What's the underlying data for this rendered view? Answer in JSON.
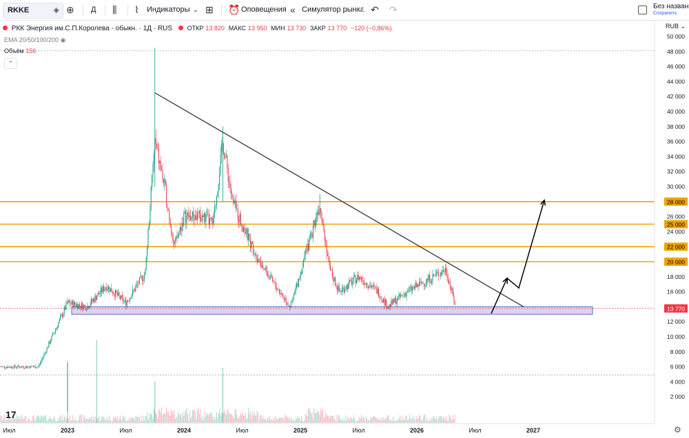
{
  "toolbar": {
    "symbol": "RKKE",
    "interval": "Д",
    "indicators_label": "Индикаторы",
    "alerts_label": "Оповещения",
    "replay_label": "Симулятор рынка",
    "layout_name": "Без названия",
    "save_label": "Сохранить",
    "icons": [
      "add-symbol-icon",
      "bar-style-icon",
      "indicators-icon",
      "chevron-down-icon",
      "templates-icon",
      "alert-icon",
      "replay-icon",
      "undo-icon",
      "redo-icon"
    ]
  },
  "legend": {
    "instrument": "РКК Энергия им.С.П.Королева - обыкн. · 1Д · RUS",
    "open_label": "ОТКР",
    "open": "13 820",
    "high_label": "МАКС",
    "high": "13 950",
    "low_label": "МИН",
    "low": "13 730",
    "close_label": "ЗАКР",
    "close": "13 770",
    "change": "−120 (−0,86%)",
    "ema_label": "EMA 20/50/100/200",
    "volume_label": "Объём",
    "volume_value": "156"
  },
  "currency": "RUB",
  "price_axis": [
    "50 000",
    "48 000",
    "46 000",
    "44 000",
    "42 000",
    "40 000",
    "38 000",
    "36 000",
    "34 000",
    "32 000",
    "30 000",
    "28 000",
    "26 000",
    "25 000",
    "24 000",
    "22 000",
    "20 000",
    "18 000",
    "16 000",
    "13 770",
    "12 000",
    "10 000",
    "8 000",
    "6 000",
    "4 000",
    "2 000"
  ],
  "time_axis": [
    "Июл",
    "2023",
    "Июл",
    "2024",
    "Июл",
    "2025",
    "Июл",
    "2026",
    "Июл",
    "2027"
  ],
  "colors": {
    "up": "#089981",
    "down": "#f23645",
    "level": "#f0a500",
    "zone": "#b39ddb",
    "trend": "#333333"
  },
  "chart_data": {
    "type": "candlestick",
    "levels": [
      28000,
      25000,
      22000,
      20000
    ],
    "last_price": 13770,
    "trendline": {
      "from": [
        "2023-10",
        42500
      ],
      "to": [
        "2026-12",
        14000
      ]
    },
    "support_zone": [
      13000,
      14000
    ],
    "projection": [
      13100,
      17800,
      16500,
      28200
    ],
    "closes": [
      [
        "2022-06",
        6000
      ],
      [
        "2022-10",
        6000
      ],
      [
        "2023-01",
        14500
      ],
      [
        "2023-03",
        14000
      ],
      [
        "2023-05",
        16800
      ],
      [
        "2023-07",
        14500
      ],
      [
        "2023-09",
        18500
      ],
      [
        "2023-10",
        36000
      ],
      [
        "2023-11",
        30000
      ],
      [
        "2023-12",
        22000
      ],
      [
        "2024-01",
        26000
      ],
      [
        "2024-03",
        26000
      ],
      [
        "2024-04",
        25000
      ],
      [
        "2024-05",
        36000
      ],
      [
        "2024-06",
        28000
      ],
      [
        "2024-08",
        22000
      ],
      [
        "2024-10",
        17500
      ],
      [
        "2024-12",
        14000
      ],
      [
        "2025-02",
        23000
      ],
      [
        "2025-03",
        28000
      ],
      [
        "2025-04",
        19000
      ],
      [
        "2025-05",
        16000
      ],
      [
        "2025-07",
        18000
      ],
      [
        "2025-09",
        16000
      ],
      [
        "2025-10",
        14000
      ],
      [
        "2025-12",
        16000
      ],
      [
        "2026-02",
        17500
      ],
      [
        "2026-04",
        19000
      ],
      [
        "2026-05",
        14000
      ]
    ]
  }
}
